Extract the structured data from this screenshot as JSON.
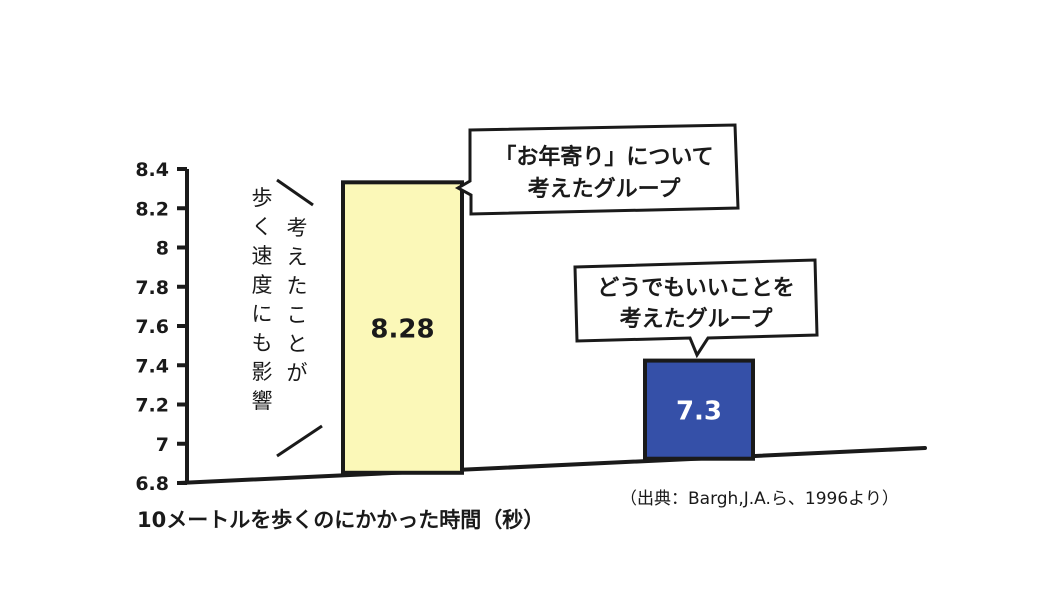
{
  "chart_data": {
    "type": "bar",
    "categories": [
      "「お年寄り」について考えたグループ",
      "どうでもいいことを考えたグループ"
    ],
    "values": [
      8.28,
      7.3
    ],
    "data_labels": [
      "8.28",
      "7.3"
    ],
    "callouts": [
      [
        "「お年寄り」について",
        "考えたグループ"
      ],
      [
        "どうでもいいことを",
        "考えたグループ"
      ]
    ],
    "colors": [
      "#fbf8b8",
      "#3550a8"
    ],
    "label_colors": [
      "#1a1a1a",
      "#ffffff"
    ],
    "ylim": [
      6.8,
      8.4
    ],
    "yticks": [
      "6.8",
      "7",
      "7.2",
      "7.4",
      "7.6",
      "7.8",
      "8",
      "8.2",
      "8.4"
    ],
    "xlabel": "10メートルを歩くのにかかった時間（秒）",
    "annotation": [
      "考えたことが",
      "歩く速度にも影響"
    ],
    "source": "（出典：Bargh,J.A.ら、1996より）",
    "grid": false
  }
}
